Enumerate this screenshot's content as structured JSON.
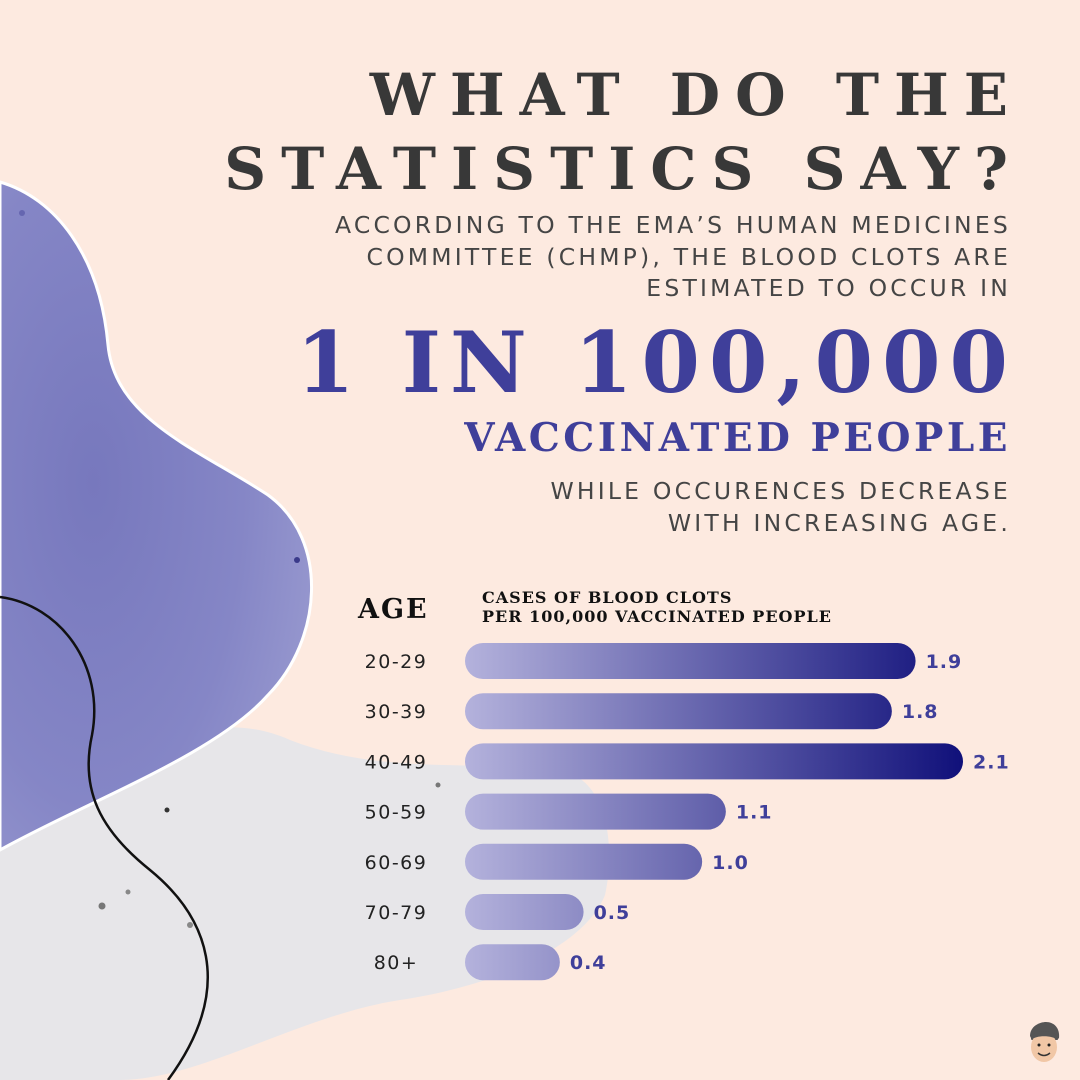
{
  "headline": {
    "line1": "WHAT DO THE",
    "line2": "STATISTICS SAY?"
  },
  "intro": {
    "line1": "ACCORDING TO THE EMA’S HUMAN MEDICINES",
    "line2": "COMMITTEE (CHMP), THE BLOOD CLOTS ARE",
    "line3": "ESTIMATED TO OCCUR IN"
  },
  "stat": {
    "big": "1 IN 100,000",
    "sub": "VACCINATED PEOPLE"
  },
  "note": {
    "line1": "WHILE OCCURENCES DECREASE",
    "line2": "WITH INCREASING AGE."
  },
  "chart_data": {
    "type": "bar",
    "orientation": "horizontal",
    "category_header": "AGE",
    "value_header_line1": "CASES OF BLOOD CLOTS",
    "value_header_line2": "PER  100,000 VACCINATED PEOPLE",
    "categories": [
      "20-29",
      "30-39",
      "40-49",
      "50-59",
      "60-69",
      "70-79",
      "80+"
    ],
    "values": [
      1.9,
      1.8,
      2.1,
      1.1,
      1.0,
      0.5,
      0.4
    ],
    "value_labels": [
      "1.9",
      "1.8",
      "2.1",
      "1.1",
      "1.0",
      "0.5",
      "0.4"
    ],
    "colors": {
      "bar_start": "#b4b2dc",
      "bar_end": "#10107a",
      "value_label": "#3f3f9a",
      "category_label": "#222222"
    }
  },
  "colors": {
    "background": "#fdeae0",
    "accent": "#3f3f9a",
    "title": "#383838",
    "blob_purple": "#7f80c2",
    "blob_grey": "#e7e6e9"
  },
  "decor": {
    "avatar_icon": "cartoon-avatar-icon"
  }
}
